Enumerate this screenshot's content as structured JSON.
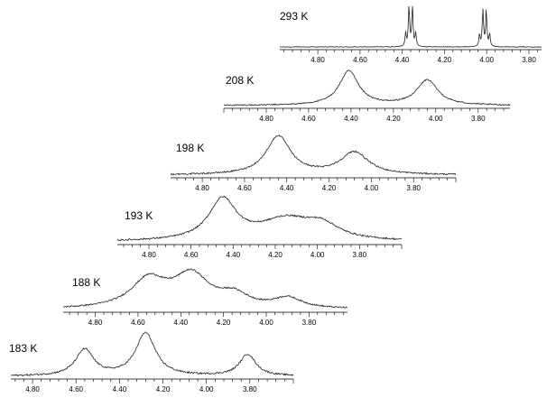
{
  "chart_data": {
    "type": "line",
    "stack_count": 6,
    "x_direction": "reversed",
    "spectra": [
      {
        "temperature_label": "293 K",
        "xlim": [
          4.98,
          3.74
        ],
        "tick_labels": [
          "4.80",
          "4.60",
          "4.40",
          "4.20",
          "4.00",
          "3.80"
        ],
        "peaks": [
          {
            "center": 4.36,
            "height": 1.0,
            "width": 0.025,
            "multiplet": "quartet"
          },
          {
            "center": 4.01,
            "height": 0.9,
            "width": 0.025,
            "multiplet": "quartet"
          }
        ]
      },
      {
        "temperature_label": "208 K",
        "xlim": [
          5.0,
          3.65
        ],
        "tick_labels": [
          "4.80",
          "4.60",
          "4.40",
          "4.20",
          "4.00",
          "3.80"
        ],
        "peaks": [
          {
            "center": 4.41,
            "height": 0.95,
            "width": 0.055
          },
          {
            "center": 4.04,
            "height": 0.7,
            "width": 0.06
          }
        ]
      },
      {
        "temperature_label": "198 K",
        "xlim": [
          4.95,
          3.6
        ],
        "tick_labels": [
          "4.80",
          "4.60",
          "4.40",
          "4.20",
          "4.00",
          "3.80"
        ],
        "peaks": [
          {
            "center": 4.44,
            "height": 0.95,
            "width": 0.07
          },
          {
            "center": 4.08,
            "height": 0.55,
            "width": 0.08
          }
        ]
      },
      {
        "temperature_label": "193 K",
        "xlim": [
          4.95,
          3.6
        ],
        "tick_labels": [
          "4.80",
          "4.60",
          "4.40",
          "4.20",
          "4.00",
          "3.80"
        ],
        "peaks": [
          {
            "center": 4.45,
            "height": 0.9,
            "width": 0.08
          },
          {
            "center": 4.15,
            "height": 0.45,
            "width": 0.15
          },
          {
            "center": 3.98,
            "height": 0.3,
            "width": 0.1
          }
        ]
      },
      {
        "temperature_label": "188 K",
        "xlim": [
          4.95,
          3.62
        ],
        "tick_labels": [
          "4.80",
          "4.60",
          "4.40",
          "4.20",
          "4.00",
          "3.80"
        ],
        "peaks": [
          {
            "center": 4.55,
            "height": 0.7,
            "width": 0.1
          },
          {
            "center": 4.35,
            "height": 0.8,
            "width": 0.1
          },
          {
            "center": 4.15,
            "height": 0.3,
            "width": 0.08
          },
          {
            "center": 3.9,
            "height": 0.25,
            "width": 0.08
          }
        ]
      },
      {
        "temperature_label": "183 K",
        "xlim": [
          4.9,
          3.6
        ],
        "tick_labels": [
          "4.80",
          "4.60",
          "4.40",
          "4.20",
          "4.00",
          "3.80"
        ],
        "peaks": [
          {
            "center": 4.56,
            "height": 0.58,
            "width": 0.05
          },
          {
            "center": 4.28,
            "height": 0.95,
            "width": 0.055
          },
          {
            "center": 3.81,
            "height": 0.48,
            "width": 0.045
          }
        ]
      }
    ]
  }
}
